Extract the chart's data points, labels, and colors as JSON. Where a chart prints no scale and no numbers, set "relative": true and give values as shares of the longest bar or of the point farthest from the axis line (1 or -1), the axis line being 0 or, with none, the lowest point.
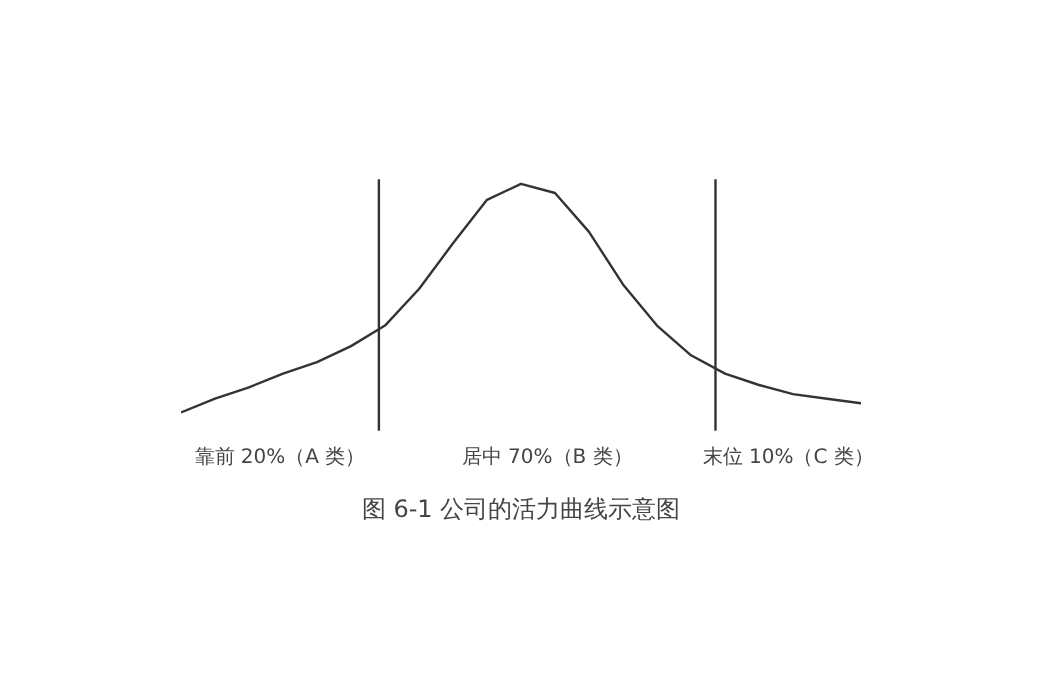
{
  "chart_data": {
    "type": "line",
    "relative": true,
    "title": "图 6-1 公司的活力曲线示意图",
    "categories": [
      null,
      null,
      null,
      null,
      null,
      null,
      null,
      null,
      null,
      null,
      null,
      null,
      null,
      null,
      null,
      null,
      null,
      null,
      null,
      null,
      null
    ],
    "series": [
      {
        "color": "#333333",
        "values": [
          0,
          0.06,
          0.11,
          0.17,
          0.22,
          0.29,
          0.38,
          0.54,
          0.74,
          0.93,
          1,
          0.96,
          0.79,
          0.56,
          0.38,
          0.25,
          0.17,
          0.12,
          0.08,
          0.06,
          0.04
        ]
      }
    ],
    "annotations": [
      "靠前 20%（A 类）",
      "居中 70%（B 类）",
      "末位 10%（C 类）"
    ],
    "grid": false
  }
}
